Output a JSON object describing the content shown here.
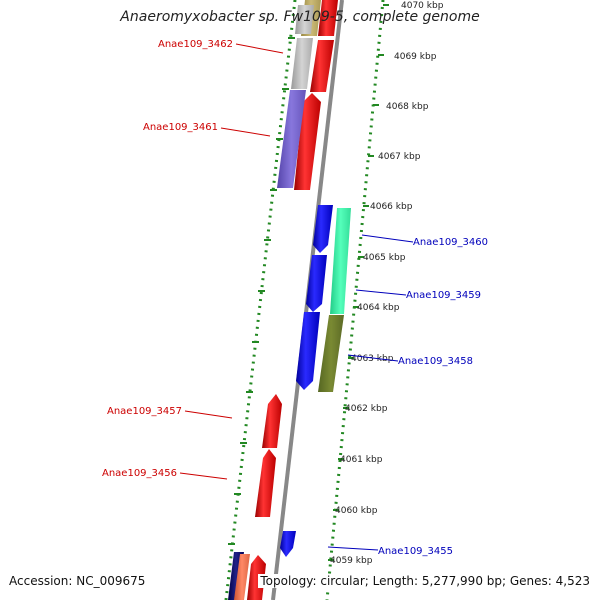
{
  "title": "Anaeromyxobacter sp. Fw109-5, complete genome",
  "accession": "Accession: NC_009675",
  "topology": "Topology: circular; Length: 5,277,990 bp; Genes: 4,523",
  "colors": {
    "forward_label": "#cc0000",
    "reverse_label": "#0000bb",
    "backbone": "#888888",
    "ruler": "#228822"
  },
  "ticks": [
    "4070 kbp",
    "4069 kbp",
    "4068 kbp",
    "4067 kbp",
    "4066 kbp",
    "4065 kbp",
    "4064 kbp",
    "4063 kbp",
    "4062 kbp",
    "4061 kbp",
    "4060 kbp",
    "4059 kbp"
  ],
  "genes": [
    {
      "name": "Anae109_3462",
      "strand": "+"
    },
    {
      "name": "Anae109_3461",
      "strand": "+"
    },
    {
      "name": "Anae109_3460",
      "strand": "-"
    },
    {
      "name": "Anae109_3459",
      "strand": "-"
    },
    {
      "name": "Anae109_3458",
      "strand": "-"
    },
    {
      "name": "Anae109_3457",
      "strand": "+"
    },
    {
      "name": "Anae109_3456",
      "strand": "+"
    },
    {
      "name": "Anae109_3455",
      "strand": "-"
    }
  ]
}
